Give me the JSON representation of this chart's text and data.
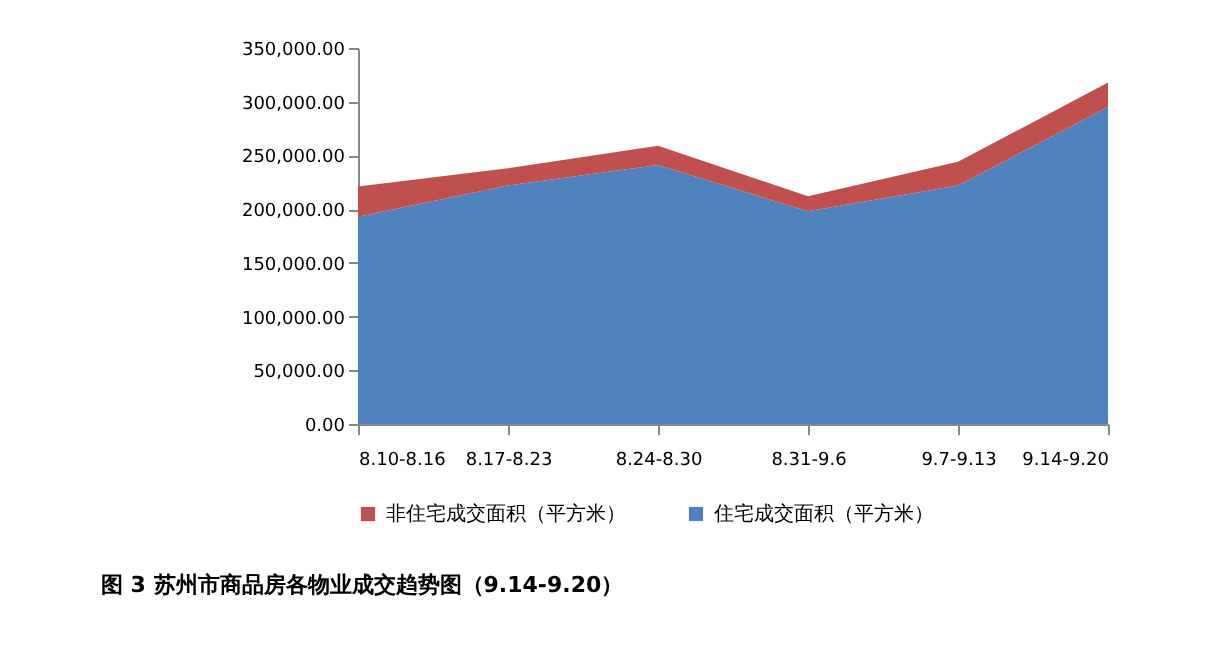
{
  "chart_data": {
    "type": "area",
    "stacked": true,
    "title": "图 3 苏州市商品房各物业成交趋势图（9.14-9.20）",
    "categories": [
      "8.10-8.16",
      "8.17-8.23",
      "8.24-8.30",
      "8.31-9.6",
      "9.7-9.13",
      "9.14-9.20"
    ],
    "series": [
      {
        "name": "住宅成交面积（平方米）",
        "color": "#4f81bd",
        "values": [
          193000,
          222000,
          241000,
          198000,
          222000,
          295000
        ]
      },
      {
        "name": "非住宅成交面积（平方米）",
        "color": "#c0504d",
        "values": [
          28000,
          16000,
          18000,
          14000,
          22000,
          23000
        ]
      }
    ],
    "ylim": [
      0,
      350000
    ],
    "yticks": [
      {
        "value": 0,
        "label": "0.00"
      },
      {
        "value": 50000,
        "label": "50,000.00"
      },
      {
        "value": 100000,
        "label": "100,000.00"
      },
      {
        "value": 150000,
        "label": "150,000.00"
      },
      {
        "value": 200000,
        "label": "200,000.00"
      },
      {
        "value": 250000,
        "label": "250,000.00"
      },
      {
        "value": 300000,
        "label": "300,000.00"
      },
      {
        "value": 350000,
        "label": "350,000.00"
      }
    ],
    "grid": false,
    "legend": "bottom"
  }
}
